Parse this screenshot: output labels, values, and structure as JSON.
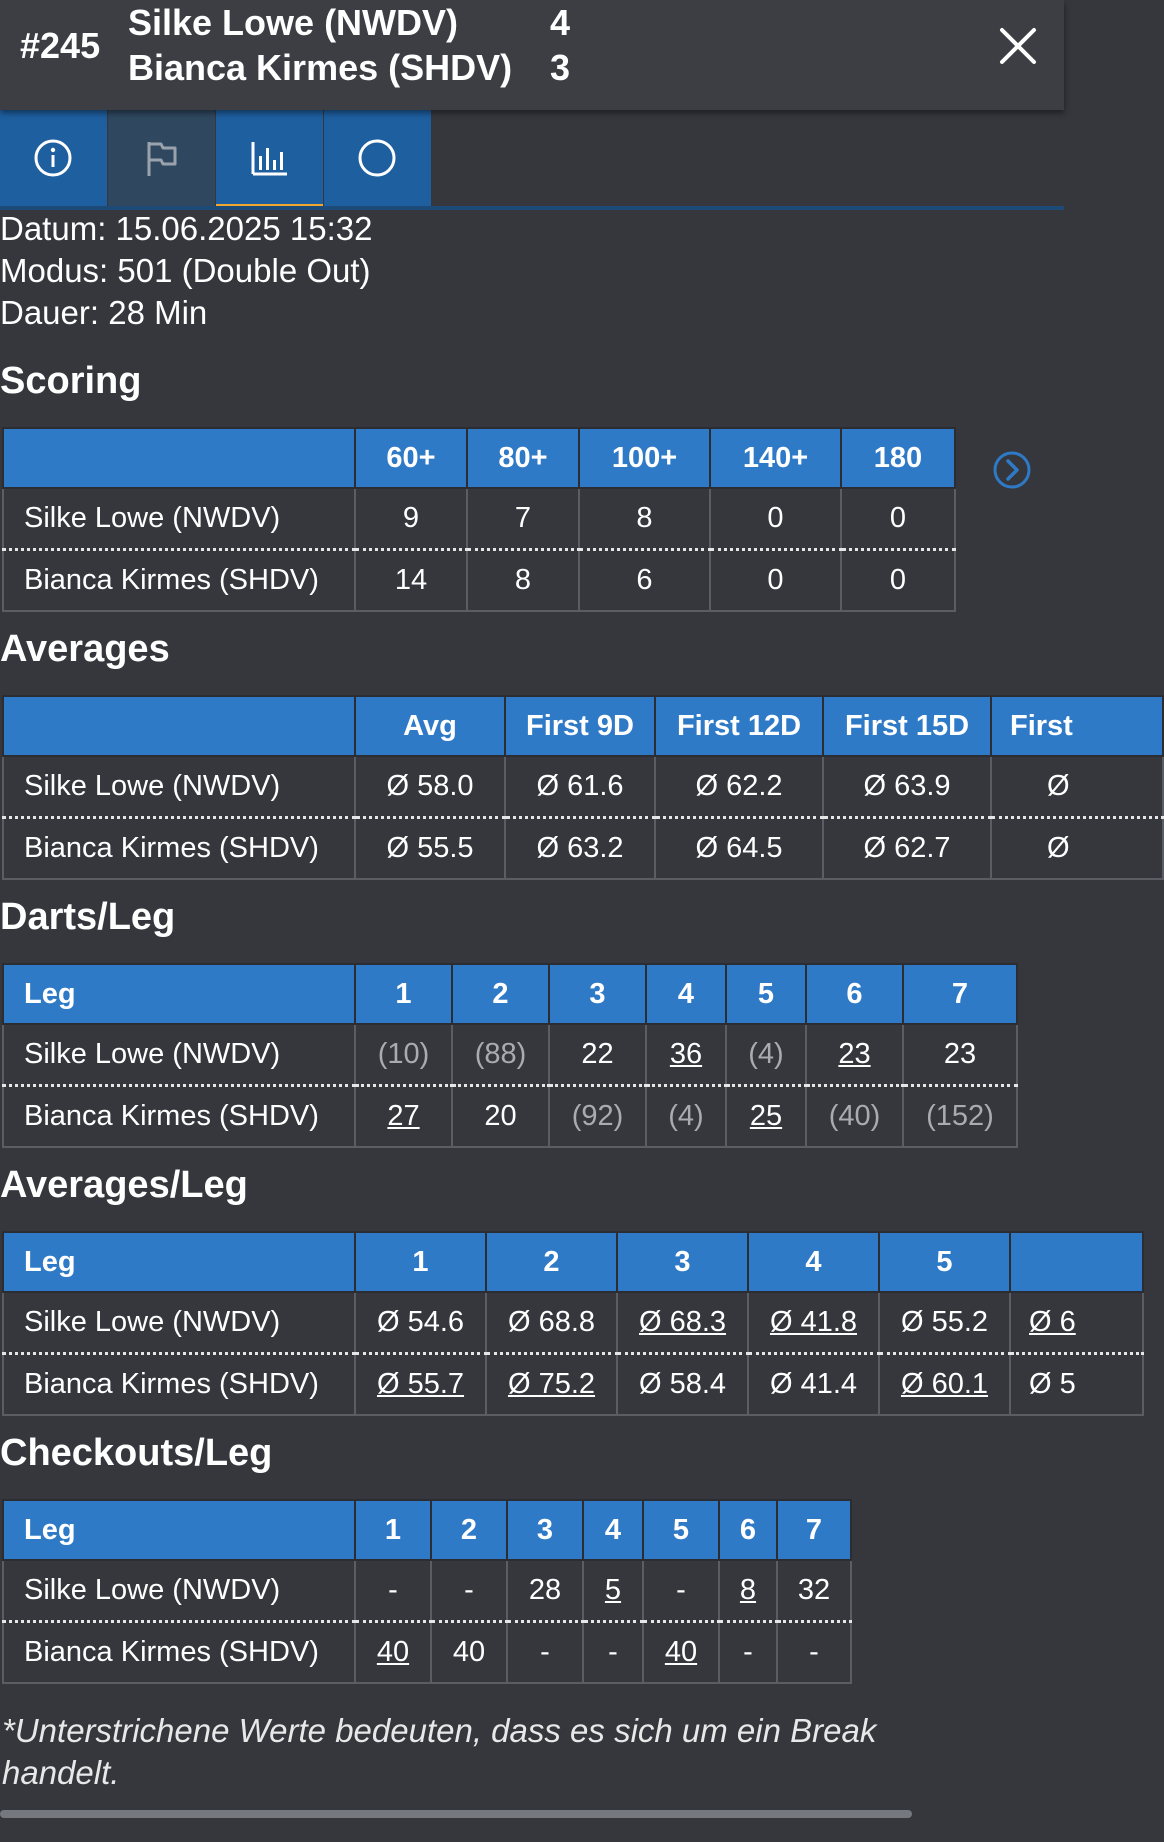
{
  "header": {
    "match_no": "#245",
    "player1": {
      "name": "Silke Lowe (NWDV)",
      "score": "4"
    },
    "player2": {
      "name": "Bianca Kirmes (SHDV)",
      "score": "3"
    }
  },
  "tabs": [
    {
      "icon": "info-icon",
      "state": "normal"
    },
    {
      "icon": "flag-icon",
      "state": "dim"
    },
    {
      "icon": "bar-chart-icon",
      "state": "active"
    },
    {
      "icon": "circle-icon",
      "state": "normal"
    }
  ],
  "info": {
    "date": "Datum: 15.06.2025 15:32",
    "mode": "Modus: 501 (Double Out)",
    "duration": "Dauer: 28 Min"
  },
  "scoring": {
    "title": "Scoring",
    "headers": [
      "",
      "60+",
      "80+",
      "100+",
      "140+",
      "180"
    ],
    "rows": [
      {
        "name": "Silke Lowe (NWDV)",
        "cells": [
          {
            "v": "9"
          },
          {
            "v": "7"
          },
          {
            "v": "8"
          },
          {
            "v": "0"
          },
          {
            "v": "0"
          }
        ]
      },
      {
        "name": "Bianca Kirmes (SHDV)",
        "cells": [
          {
            "v": "14"
          },
          {
            "v": "8"
          },
          {
            "v": "6"
          },
          {
            "v": "0"
          },
          {
            "v": "0"
          }
        ]
      }
    ]
  },
  "averages": {
    "title": "Averages",
    "headers": [
      "",
      "Avg",
      "First 9D",
      "First 12D",
      "First 15D",
      "First"
    ],
    "rows": [
      {
        "name": "Silke Lowe (NWDV)",
        "cells": [
          {
            "v": "Ø 58.0"
          },
          {
            "v": "Ø 61.6"
          },
          {
            "v": "Ø 62.2"
          },
          {
            "v": "Ø 63.9"
          },
          {
            "v": "Ø"
          }
        ]
      },
      {
        "name": "Bianca Kirmes (SHDV)",
        "cells": [
          {
            "v": "Ø 55.5"
          },
          {
            "v": "Ø 63.2"
          },
          {
            "v": "Ø 64.5"
          },
          {
            "v": "Ø 62.7"
          },
          {
            "v": "Ø"
          }
        ]
      }
    ]
  },
  "darts_leg": {
    "title": "Darts/Leg",
    "headers": [
      "Leg",
      "1",
      "2",
      "3",
      "4",
      "5",
      "6",
      "7"
    ],
    "rows": [
      {
        "name": "Silke Lowe (NWDV)",
        "cells": [
          {
            "v": "(10)",
            "muted": true
          },
          {
            "v": "(88)",
            "muted": true
          },
          {
            "v": "22"
          },
          {
            "v": "36",
            "u": true
          },
          {
            "v": "(4)",
            "muted": true
          },
          {
            "v": "23",
            "u": true
          },
          {
            "v": "23"
          }
        ]
      },
      {
        "name": "Bianca Kirmes (SHDV)",
        "cells": [
          {
            "v": "27",
            "u": true
          },
          {
            "v": "20"
          },
          {
            "v": "(92)",
            "muted": true
          },
          {
            "v": "(4)",
            "muted": true
          },
          {
            "v": "25",
            "u": true
          },
          {
            "v": "(40)",
            "muted": true
          },
          {
            "v": "(152)",
            "muted": true
          }
        ]
      }
    ]
  },
  "averages_leg": {
    "title": "Averages/Leg",
    "headers": [
      "Leg",
      "1",
      "2",
      "3",
      "4",
      "5",
      ""
    ],
    "rows": [
      {
        "name": "Silke Lowe (NWDV)",
        "cells": [
          {
            "v": "Ø 54.6"
          },
          {
            "v": "Ø 68.8"
          },
          {
            "v": "Ø 68.3",
            "u": true
          },
          {
            "v": "Ø 41.8",
            "u": true
          },
          {
            "v": "Ø 55.2"
          },
          {
            "v": "Ø 6",
            "u": true
          }
        ]
      },
      {
        "name": "Bianca Kirmes (SHDV)",
        "cells": [
          {
            "v": "Ø 55.7",
            "u": true
          },
          {
            "v": "Ø 75.2",
            "u": true
          },
          {
            "v": "Ø 58.4"
          },
          {
            "v": "Ø 41.4"
          },
          {
            "v": "Ø 60.1",
            "u": true
          },
          {
            "v": "Ø 5"
          }
        ]
      }
    ]
  },
  "checkouts_leg": {
    "title": "Checkouts/Leg",
    "headers": [
      "Leg",
      "1",
      "2",
      "3",
      "4",
      "5",
      "6",
      "7"
    ],
    "rows": [
      {
        "name": "Silke Lowe (NWDV)",
        "cells": [
          {
            "v": "-"
          },
          {
            "v": "-"
          },
          {
            "v": "28"
          },
          {
            "v": "5",
            "u": true
          },
          {
            "v": "-"
          },
          {
            "v": "8",
            "u": true
          },
          {
            "v": "32"
          }
        ]
      },
      {
        "name": "Bianca Kirmes (SHDV)",
        "cells": [
          {
            "v": "40",
            "u": true
          },
          {
            "v": "40"
          },
          {
            "v": "-"
          },
          {
            "v": "-"
          },
          {
            "v": "40",
            "u": true
          },
          {
            "v": "-"
          },
          {
            "v": "-"
          }
        ]
      }
    ]
  },
  "footnote": "*Unterstrichene Werte bedeuten, dass es sich um ein Break handelt.",
  "colors": {
    "accent": "#2f7ac7",
    "tab": "#1e5fa0",
    "indicator": "#f0a830",
    "background": "#35373d"
  }
}
